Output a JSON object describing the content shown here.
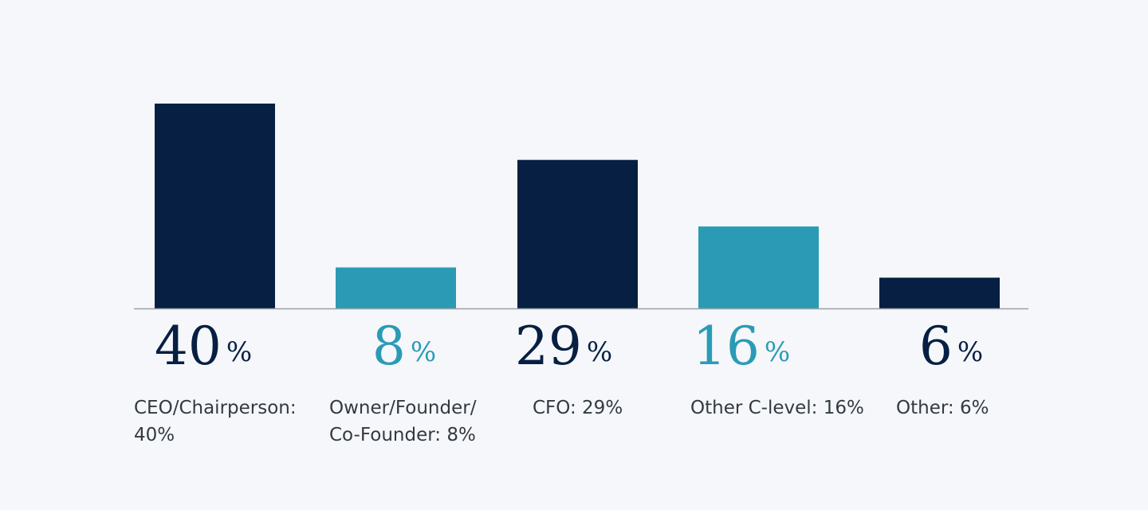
{
  "chart_data": {
    "type": "bar",
    "categories": [
      "CEO/Chairperson",
      "Owner/Founder/Co-Founder",
      "CFO",
      "Other C-level",
      "Other"
    ],
    "values": [
      40,
      8,
      29,
      16,
      6
    ],
    "unit": "%",
    "ylim": [
      0,
      45
    ],
    "grid": false,
    "legend": "none",
    "colors": [
      "#061f42",
      "#2b9bb5",
      "#061f42",
      "#2b9bb5",
      "#061f42"
    ],
    "category_labels": [
      [
        "CEO/Chairperson:",
        "40%"
      ],
      [
        "Owner/Founder/",
        "Co-Founder: 8%"
      ],
      [
        "CFO: 29%"
      ],
      [
        "Other C-level: 16%"
      ],
      [
        "Other: 6%"
      ]
    ],
    "baseline_color": "#9aa0a6"
  }
}
